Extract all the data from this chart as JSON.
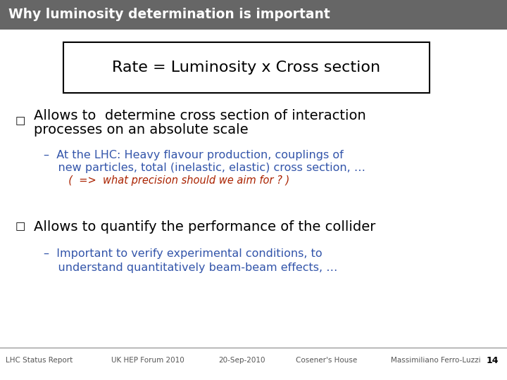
{
  "title": "Why luminosity determination is important",
  "title_bg": "#666666",
  "title_color": "#ffffff",
  "box_text": "Rate = Luminosity x Cross section",
  "bullet1_line1": "Allows to  determine cross section of interaction",
  "bullet1_line2": "processes on an absolute scale",
  "bullet1_sub1_line1": "–  At the LHC: Heavy flavour production, couplings of",
  "bullet1_sub1_line2": "    new particles, total (inelastic, elastic) cross section, …",
  "bullet1_sub2": "  (  =>  what precision should we aim for ? )",
  "bullet2_text": "Allows to quantify the performance of the collider",
  "bullet2_sub1": "–  Important to verify experimental conditions, to",
  "bullet2_sub2": "    understand quantitatively beam-beam effects, …",
  "footer_left": "LHC Status Report",
  "footer_center_left": "UK HEP Forum 2010",
  "footer_center": "20-Sep-2010",
  "footer_center_right": "Cosener's House",
  "footer_right": "Massimiliano Ferro-Luzzi",
  "footer_page": "14",
  "bg_color": "#ffffff",
  "footer_line_color": "#888888",
  "blue_color": "#3355aa",
  "red_color": "#aa2200",
  "black_color": "#000000",
  "gray_color": "#555555"
}
